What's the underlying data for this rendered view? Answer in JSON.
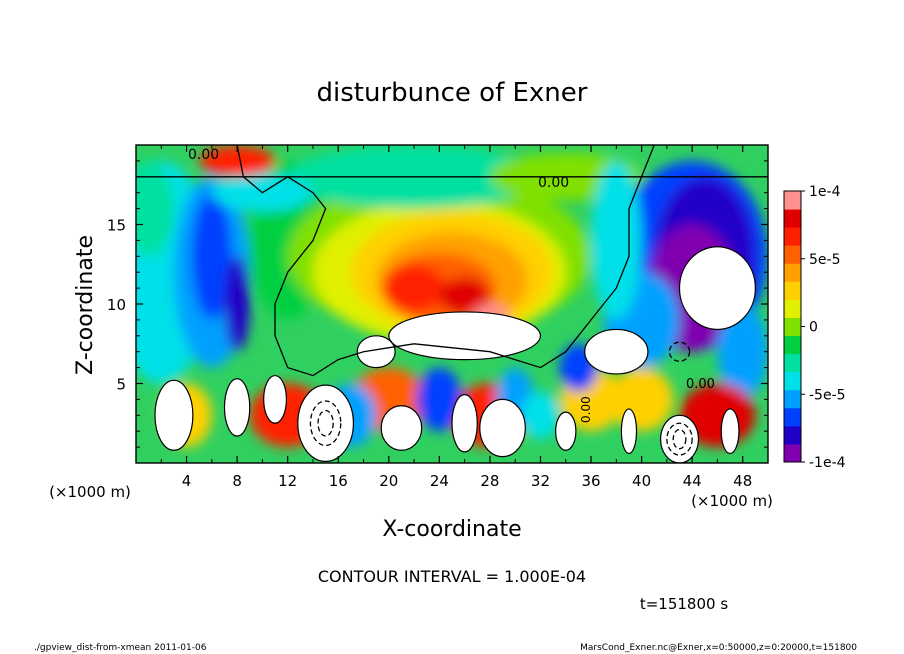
{
  "chart_data": {
    "type": "heatmap",
    "title": "disturbunce of Exner",
    "xlabel": "X-coordinate",
    "ylabel": "Z-coordinate",
    "x_unit": "(×1000 m)",
    "y_unit": "(×1000 m)",
    "xlim": [
      0,
      50
    ],
    "ylim": [
      0,
      20
    ],
    "x_ticks": [
      4,
      8,
      12,
      16,
      20,
      24,
      28,
      32,
      36,
      40,
      44,
      48
    ],
    "y_ticks": [
      5,
      10,
      15
    ],
    "colorbar": {
      "range": [
        -0.0001,
        0.0001
      ],
      "ticks": [
        {
          "value": 0.0001,
          "label": "1e-4"
        },
        {
          "value": 5e-05,
          "label": "5e-5"
        },
        {
          "value": 0,
          "label": "0"
        },
        {
          "value": -5e-05,
          "label": "-5e-5"
        },
        {
          "value": -0.0001,
          "label": "-1e-4"
        }
      ],
      "colors": [
        "#8000b0",
        "#2000c8",
        "#0040ff",
        "#00a0ff",
        "#00e0e8",
        "#00e0a0",
        "#00d040",
        "#80e000",
        "#e0f000",
        "#ffd000",
        "#ffa000",
        "#ff6000",
        "#ff2000",
        "#e00000",
        "#ff9090"
      ]
    },
    "contour_labels": [
      "0.00",
      "0.00",
      "0.00",
      "0.00"
    ],
    "contour_interval_text": "CONTOUR INTERVAL = 1.000E-04",
    "time_text": "t=151800 s",
    "footer_left": "./gpview_dist-from-xmean  2011-01-06",
    "footer_right": "MarsCond_Exner.nc@Exner,x=0:50000,z=0:20000,t=151800",
    "grid": false
  }
}
